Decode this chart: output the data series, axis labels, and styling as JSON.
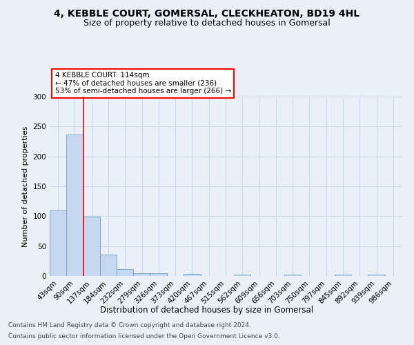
{
  "title1": "4, KEBBLE COURT, GOMERSAL, CLECKHEATON, BD19 4HL",
  "title2": "Size of property relative to detached houses in Gomersal",
  "xlabel": "Distribution of detached houses by size in Gomersal",
  "ylabel": "Number of detached properties",
  "bar_labels": [
    "43sqm",
    "90sqm",
    "137sqm",
    "184sqm",
    "232sqm",
    "279sqm",
    "326sqm",
    "373sqm",
    "420sqm",
    "467sqm",
    "515sqm",
    "562sqm",
    "609sqm",
    "656sqm",
    "703sqm",
    "750sqm",
    "797sqm",
    "845sqm",
    "892sqm",
    "939sqm",
    "986sqm"
  ],
  "bar_values": [
    110,
    236,
    99,
    36,
    11,
    5,
    5,
    0,
    4,
    0,
    0,
    2,
    0,
    0,
    2,
    0,
    0,
    2,
    0,
    2,
    0
  ],
  "bar_color": "#c5d8ed",
  "bar_edge_color": "#7ba7cc",
  "grid_color": "#d0d8e8",
  "background_color": "#eaf0f8",
  "property_line_x": 1.5,
  "annotation_text": "4 KEBBLE COURT: 114sqm\n← 47% of detached houses are smaller (236)\n53% of semi-detached houses are larger (266) →",
  "annotation_box_color": "white",
  "annotation_box_edge": "red",
  "vline_color": "red",
  "ylim": [
    0,
    300
  ],
  "yticks": [
    0,
    50,
    100,
    150,
    200,
    250,
    300
  ],
  "footnote1": "Contains HM Land Registry data © Crown copyright and database right 2024.",
  "footnote2": "Contains public sector information licensed under the Open Government Licence v3.0.",
  "title1_fontsize": 10,
  "title2_fontsize": 9,
  "xlabel_fontsize": 8.5,
  "ylabel_fontsize": 8,
  "tick_fontsize": 7.5,
  "annot_fontsize": 7.5,
  "footnote_fontsize": 6.5
}
